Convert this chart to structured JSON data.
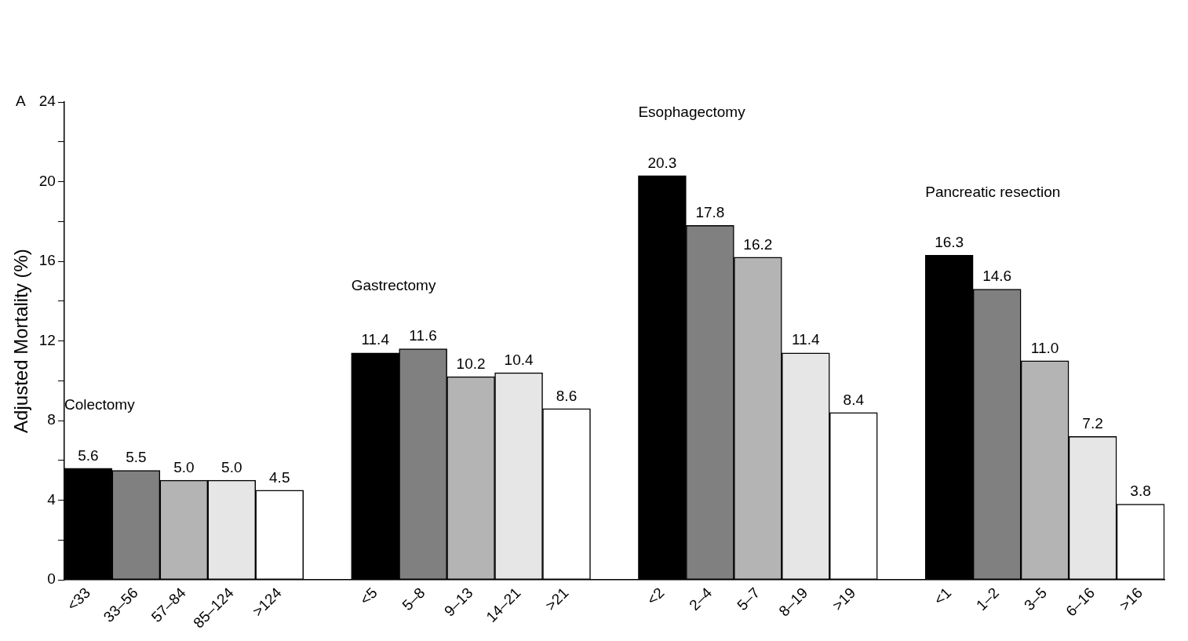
{
  "chart_data": {
    "type": "bar",
    "ylabel": "Adjusted Mortality (%)",
    "categories": [
      "<33",
      "33–56",
      "57–84",
      "85–124",
      ">124",
      null,
      "<5",
      "5–8",
      "9–13",
      "14–21",
      ">21",
      null,
      "<2",
      "2–4",
      "5–7",
      "8–19",
      ">19",
      null,
      "<1",
      "1–2",
      "3–5",
      "6–16",
      ">16"
    ],
    "values": [
      5.6,
      5.5,
      5.0,
      5.0,
      4.5,
      null,
      11.4,
      11.6,
      10.2,
      10.4,
      8.6,
      null,
      20.3,
      17.8,
      16.2,
      11.4,
      8.4,
      null,
      16.3,
      14.6,
      11.0,
      7.2,
      3.8
    ],
    "colors": [
      "#000000",
      "#808080",
      "#b4b4b4",
      "#e6e6e6",
      "#ffffff",
      null,
      "#000000",
      "#808080",
      "#b4b4b4",
      "#e6e6e6",
      "#ffffff",
      null,
      "#000000",
      "#808080",
      "#b4b4b4",
      "#e6e6e6",
      "#ffffff",
      null,
      "#000000",
      "#808080",
      "#b4b4b4",
      "#e6e6e6",
      "#ffffff"
    ],
    "ylim": [
      0,
      24
    ],
    "yticks": [
      0,
      {
        "value": 2,
        "label": null
      },
      4,
      {
        "value": 6,
        "label": null
      },
      8,
      {
        "value": 10,
        "label": null
      },
      12,
      {
        "value": 14,
        "label": null
      },
      16,
      {
        "value": 18,
        "label": null
      },
      20,
      {
        "value": 22,
        "label": null
      },
      24
    ],
    "value_labels": [
      "5.6",
      "5.5",
      "5.0",
      "5.0",
      "4.5",
      null,
      "11.4",
      "11.6",
      "10.2",
      "10.4",
      "8.6",
      null,
      "20.3",
      "17.8",
      "16.2",
      "11.4",
      "8.4",
      null,
      "16.3",
      "14.6",
      "11.0",
      "7.2",
      "3.8"
    ],
    "grid": false,
    "legend": false,
    "annotations": [
      "A",
      "Colectomy",
      "Gastrectomy",
      "Esophagectomy",
      "Pancreatic resection"
    ]
  }
}
